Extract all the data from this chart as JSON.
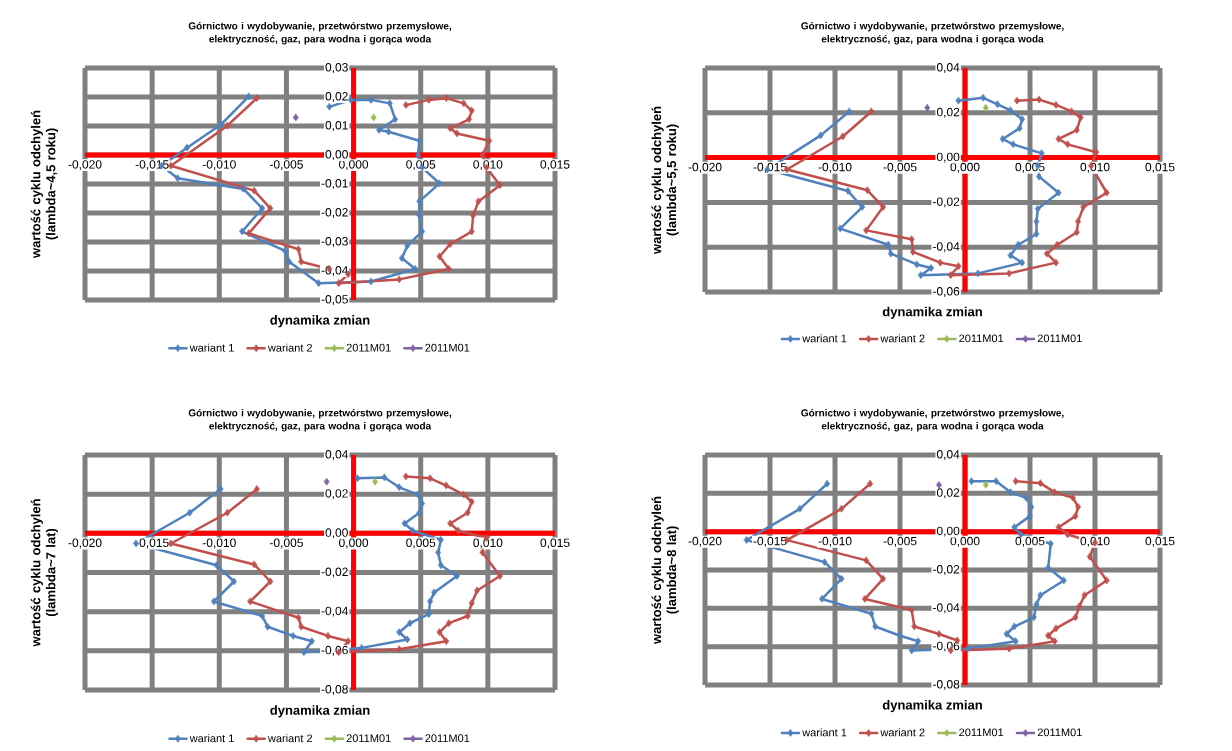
{
  "chart_data": [
    {
      "type": "line",
      "title": "Górnictwo i wydobywanie, przetwórstwo przemysłowe, elektryczność, gaz, para wodna i gorąca woda",
      "xlabel": "dynamika zmian",
      "ylabel": "wartość cyklu odchyleń (lambda~4,5 roku)",
      "grid": true,
      "legend": "bottom",
      "marker": "diamond",
      "xlim": [
        -0.02,
        0.015
      ],
      "ylim": [
        -0.05,
        0.03
      ],
      "xticks": [
        {
          "value": -0.02,
          "label": "-0,020"
        },
        {
          "value": -0.015,
          "label": "-0,015"
        },
        {
          "value": -0.01,
          "label": "-0,010"
        },
        {
          "value": -0.005,
          "label": "-0,005"
        },
        {
          "value": 0,
          "label": "0,000"
        },
        {
          "value": 0.005,
          "label": "0,005"
        },
        {
          "value": 0.01,
          "label": "0,010"
        },
        {
          "value": 0.015,
          "label": "0,015"
        }
      ],
      "yticks": [
        {
          "value": -0.05,
          "label": "-0,05"
        },
        {
          "value": -0.04,
          "label": "-0,04"
        },
        {
          "value": -0.03,
          "label": "-0,03"
        },
        {
          "value": -0.02,
          "label": "-0,02"
        },
        {
          "value": -0.01,
          "label": "-0,01"
        },
        {
          "value": 0,
          "label": "0,00"
        },
        {
          "value": 0.01,
          "label": "0,01"
        },
        {
          "value": 0.02,
          "label": "0,02"
        },
        {
          "value": 0.03,
          "label": "0,03"
        }
      ],
      "series": [
        {
          "name": "wariant 1",
          "color": "#4f81bd",
          "x": [
            -0.0078,
            -0.0099,
            -0.0124,
            -0.0143,
            -0.0131,
            -0.0082,
            -0.0068,
            -0.0083,
            -0.0051,
            -0.0048,
            -0.0026,
            0.0013,
            0.0046,
            0.0036,
            0.004,
            0.0051,
            0.0049,
            0.0049,
            0.0064,
            0.0051,
            0.0048,
            0.0049,
            0.0026,
            0.0019,
            0.0031,
            0.0027,
            0.0013,
            -0.0002,
            -0.0018
          ],
          "values": [
            0.0202,
            0.0104,
            0.0025,
            -0.0037,
            -0.008,
            -0.0117,
            -0.0184,
            -0.0264,
            -0.0331,
            -0.0368,
            -0.0442,
            -0.0436,
            -0.0393,
            -0.0356,
            -0.0313,
            -0.0264,
            -0.0209,
            -0.016,
            -0.0098,
            -0.0043,
            0.0,
            0.0049,
            0.008,
            0.0086,
            0.0123,
            0.0178,
            0.019,
            0.019,
            0.0166
          ]
        },
        {
          "name": "wariant 2",
          "color": "#c0504d",
          "x": [
            -0.0072,
            -0.0094,
            -0.0136,
            -0.0074,
            -0.0062,
            -0.0078,
            -0.0041,
            -0.0039,
            -0.0018,
            -0.0004,
            -0.0011,
            0.0034,
            0.0071,
            0.0064,
            0.0072,
            0.0088,
            0.0089,
            0.0093,
            0.0109,
            0.0099,
            0.0096,
            0.0101,
            0.0077,
            0.0072,
            0.0086,
            0.0088,
            0.0082,
            0.0069,
            0.0056,
            0.0039
          ],
          "values": [
            0.0196,
            0.0101,
            -0.0037,
            -0.0123,
            -0.0184,
            -0.027,
            -0.0325,
            -0.0368,
            -0.0393,
            -0.0411,
            -0.0442,
            -0.0429,
            -0.0393,
            -0.035,
            -0.0307,
            -0.0264,
            -0.0209,
            -0.016,
            -0.0104,
            -0.0043,
            0.0,
            0.0049,
            0.0074,
            0.0092,
            0.0123,
            0.0153,
            0.0178,
            0.0196,
            0.019,
            0.0172
          ]
        },
        {
          "name": "2011M01",
          "color": "#9bbb59",
          "x": [
            0.0015
          ],
          "values": [
            0.0129
          ]
        },
        {
          "name": "2011M01",
          "color": "#8064a2",
          "x": [
            -0.0043
          ],
          "values": [
            0.0129
          ]
        }
      ]
    },
    {
      "type": "line",
      "title": "Górnictwo i wydobywanie, przetwórstwo przemysłowe, elektryczność, gaz, para wodna i gorąca woda",
      "xlabel": "dynamika zmian",
      "ylabel": "wartość cyklu odchyleń (lambda~5,5 roku)",
      "grid": true,
      "legend": "bottom",
      "marker": "diamond",
      "xlim": [
        -0.02,
        0.015
      ],
      "ylim": [
        -0.06,
        0.04
      ],
      "xticks": [
        {
          "value": -0.02,
          "label": "-0,020"
        },
        {
          "value": -0.015,
          "label": "-0,015"
        },
        {
          "value": -0.01,
          "label": "-0,010"
        },
        {
          "value": -0.005,
          "label": "-0,005"
        },
        {
          "value": 0,
          "label": "0,000"
        },
        {
          "value": 0.005,
          "label": "0,005"
        },
        {
          "value": 0.01,
          "label": "0,010"
        },
        {
          "value": 0.015,
          "label": "0,015"
        }
      ],
      "yticks": [
        {
          "value": -0.06,
          "label": "-0,06"
        },
        {
          "value": -0.04,
          "label": "-0,04"
        },
        {
          "value": -0.02,
          "label": "-0,02"
        },
        {
          "value": 0,
          "label": "0,00"
        },
        {
          "value": 0.02,
          "label": "0,02"
        },
        {
          "value": 0.04,
          "label": "0,04"
        }
      ],
      "series": [
        {
          "name": "wariant 1",
          "color": "#4f81bd",
          "x": [
            -0.0089,
            -0.0111,
            -0.0152,
            -0.009,
            -0.0079,
            -0.0096,
            -0.0059,
            -0.0057,
            -0.0037,
            -0.0026,
            -0.0034,
            0.001,
            0.0044,
            0.0035,
            0.0041,
            0.0055,
            0.0055,
            0.0056,
            0.0072,
            0.0057,
            0.0056,
            0.0059,
            0.0037,
            0.0029,
            0.0042,
            0.0044,
            0.0035,
            0.0025,
            0.0014,
            -0.0005
          ],
          "values": [
            0.0206,
            0.0099,
            -0.0053,
            -0.0149,
            -0.0221,
            -0.0317,
            -0.0389,
            -0.0429,
            -0.0477,
            -0.0493,
            -0.0525,
            -0.0517,
            -0.0469,
            -0.0437,
            -0.0389,
            -0.0341,
            -0.0285,
            -0.0229,
            -0.0157,
            -0.0085,
            -0.0037,
            0.0019,
            0.0059,
            0.0083,
            0.0131,
            0.0171,
            0.0211,
            0.0238,
            0.0267,
            0.0254
          ]
        },
        {
          "name": "wariant 2",
          "color": "#c0504d",
          "x": [
            -0.0072,
            -0.0094,
            -0.0137,
            -0.0075,
            -0.0063,
            -0.0076,
            -0.0041,
            -0.004,
            -0.0019,
            -0.0005,
            -0.0011,
            0.0034,
            0.007,
            0.0063,
            0.0071,
            0.0086,
            0.0087,
            0.0091,
            0.0109,
            0.0097,
            0.0101,
            0.0079,
            0.0072,
            0.0086,
            0.0089,
            0.0082,
            0.007,
            0.0057,
            0.004
          ],
          "values": [
            0.0206,
            0.0094,
            -0.0053,
            -0.0146,
            -0.0221,
            -0.0325,
            -0.0365,
            -0.0421,
            -0.0469,
            -0.0485,
            -0.0525,
            -0.0517,
            -0.0469,
            -0.0429,
            -0.0389,
            -0.0333,
            -0.0285,
            -0.0221,
            -0.0157,
            -0.0037,
            0.0024,
            0.0059,
            0.0083,
            0.0123,
            0.0179,
            0.0206,
            0.0235,
            0.0259,
            0.0254
          ]
        },
        {
          "name": "2011M01",
          "color": "#9bbb59",
          "x": [
            0.0016
          ],
          "values": [
            0.0222
          ]
        },
        {
          "name": "2011M01",
          "color": "#8064a2",
          "x": [
            -0.0029
          ],
          "values": [
            0.0222
          ]
        }
      ]
    },
    {
      "type": "line",
      "title": "Górnictwo i wydobywanie, przetwórstwo przemysłowe, elektryczność, gaz, para wodna i gorąca woda",
      "xlabel": "dynamika zmian",
      "ylabel": "wartość cyklu odchyleń (lambda~7 lat)",
      "grid": true,
      "legend": "bottom",
      "marker": "diamond",
      "xlim": [
        -0.02,
        0.015
      ],
      "ylim": [
        -0.08,
        0.04
      ],
      "xticks": [
        {
          "value": -0.02,
          "label": "-0,020"
        },
        {
          "value": -0.015,
          "label": "-0,015"
        },
        {
          "value": -0.01,
          "label": "-0,010"
        },
        {
          "value": -0.005,
          "label": "-0,005"
        },
        {
          "value": 0,
          "label": "0,000"
        },
        {
          "value": 0.005,
          "label": "0,005"
        },
        {
          "value": 0.01,
          "label": "0,010"
        },
        {
          "value": 0.015,
          "label": "0,015"
        }
      ],
      "yticks": [
        {
          "value": -0.08,
          "label": "-0,08"
        },
        {
          "value": -0.06,
          "label": "-0,06"
        },
        {
          "value": -0.04,
          "label": "-0,04"
        },
        {
          "value": -0.02,
          "label": "-0,02"
        },
        {
          "value": 0,
          "label": "0,00"
        },
        {
          "value": 0.02,
          "label": "0,02"
        },
        {
          "value": 0.04,
          "label": "0,04"
        }
      ],
      "series": [
        {
          "name": "wariant 1",
          "color": "#4f81bd",
          "x": [
            -0.0099,
            -0.0122,
            -0.0162,
            -0.0102,
            -0.0089,
            -0.0104,
            -0.0068,
            -0.0064,
            -0.0045,
            -0.0031,
            -0.0037,
            0.0006,
            0.004,
            0.0034,
            0.0042,
            0.0056,
            0.0057,
            0.006,
            0.0077,
            0.0065,
            0.0063,
            0.0065,
            0.0044,
            0.0038,
            0.0049,
            0.0051,
            0.0048,
            0.0034,
            0.0023,
            0.0003
          ],
          "values": [
            0.0226,
            0.0105,
            -0.0052,
            -0.0163,
            -0.0246,
            -0.0348,
            -0.0422,
            -0.0477,
            -0.0524,
            -0.0551,
            -0.0607,
            -0.0585,
            -0.0542,
            -0.0505,
            -0.0459,
            -0.0413,
            -0.0348,
            -0.0302,
            -0.0218,
            -0.0163,
            -0.0098,
            -0.0033,
            0.0013,
            0.005,
            0.0105,
            0.0152,
            0.0198,
            0.0235,
            0.0285,
            0.0281
          ]
        },
        {
          "name": "wariant 2",
          "color": "#c0504d",
          "x": [
            -0.0072,
            -0.0094,
            -0.0136,
            -0.0074,
            -0.0062,
            -0.0077,
            -0.0041,
            -0.0039,
            -0.0019,
            -0.0004,
            -0.0011,
            0.0034,
            0.0069,
            0.0064,
            0.0071,
            0.0085,
            0.0088,
            0.0092,
            0.0109,
            0.0096,
            0.0099,
            0.0078,
            0.0072,
            0.0085,
            0.0088,
            0.0082,
            0.0069,
            0.0057,
            0.0039
          ],
          "values": [
            0.0226,
            0.0105,
            -0.0052,
            -0.0159,
            -0.0246,
            -0.0348,
            -0.0431,
            -0.0477,
            -0.0524,
            -0.0551,
            -0.0607,
            -0.0592,
            -0.0551,
            -0.0505,
            -0.0459,
            -0.0422,
            -0.0357,
            -0.0292,
            -0.0218,
            -0.0098,
            -0.0024,
            0.0013,
            0.005,
            0.0105,
            0.0161,
            0.0198,
            0.0244,
            0.0281,
            0.029
          ]
        },
        {
          "name": "2011M01",
          "color": "#9bbb59",
          "x": [
            0.0016
          ],
          "values": [
            0.0263
          ]
        },
        {
          "name": "2011M01",
          "color": "#8064a2",
          "x": [
            -0.002
          ],
          "values": [
            0.0263
          ]
        }
      ]
    },
    {
      "type": "line",
      "title": "Górnictwo i wydobywanie, przetwórstwo przemysłowe, elektryczność, gaz, para wodna i gorąca woda",
      "xlabel": "dynamika zmian",
      "ylabel": "wartość cyklu odchyleń (lambda~8 lat)",
      "grid": true,
      "legend": "bottom",
      "marker": "diamond",
      "xlim": [
        -0.02,
        0.015
      ],
      "ylim": [
        -0.08,
        0.04
      ],
      "xticks": [
        {
          "value": -0.02,
          "label": "-0,020"
        },
        {
          "value": -0.015,
          "label": "-0,015"
        },
        {
          "value": -0.01,
          "label": "-0,010"
        },
        {
          "value": -0.005,
          "label": "-0,005"
        },
        {
          "value": 0,
          "label": "0,000"
        },
        {
          "value": 0.005,
          "label": "0,005"
        },
        {
          "value": 0.01,
          "label": "0,010"
        },
        {
          "value": 0.015,
          "label": "0,015"
        }
      ],
      "yticks": [
        {
          "value": -0.08,
          "label": "-0,08"
        },
        {
          "value": -0.06,
          "label": "-0,06"
        },
        {
          "value": -0.04,
          "label": "-0,04"
        },
        {
          "value": -0.02,
          "label": "-0,02"
        },
        {
          "value": 0,
          "label": "0,00"
        },
        {
          "value": 0.02,
          "label": "0,02"
        },
        {
          "value": 0.04,
          "label": "0,04"
        }
      ],
      "series": [
        {
          "name": "wariant 1",
          "color": "#4f81bd",
          "x": [
            -0.0106,
            -0.0127,
            -0.0168,
            -0.0108,
            -0.0095,
            -0.011,
            -0.0072,
            -0.0069,
            -0.005,
            -0.0036,
            -0.0041,
            0.0002,
            0.0039,
            0.0032,
            0.0038,
            0.0053,
            0.0055,
            0.0058,
            0.0076,
            0.0064,
            0.0066,
            0.0043,
            0.0038,
            0.005,
            0.0051,
            0.0047,
            0.0035,
            0.0024,
            0.0005
          ],
          "values": [
            0.025,
            0.0119,
            -0.0044,
            -0.0159,
            -0.0246,
            -0.0351,
            -0.0428,
            -0.0495,
            -0.0543,
            -0.0572,
            -0.062,
            -0.0611,
            -0.0572,
            -0.0534,
            -0.0495,
            -0.0447,
            -0.038,
            -0.0332,
            -0.0255,
            -0.0188,
            -0.0063,
            -0.0015,
            0.0023,
            0.0081,
            0.0129,
            0.0177,
            0.0205,
            0.0263,
            0.0263
          ]
        },
        {
          "name": "wariant 2",
          "color": "#c0504d",
          "x": [
            -0.0073,
            -0.0095,
            -0.0137,
            -0.0076,
            -0.0063,
            -0.0077,
            -0.0041,
            -0.0039,
            -0.002,
            -0.0006,
            -0.0011,
            0.0034,
            0.0069,
            0.0064,
            0.007,
            0.0085,
            0.0088,
            0.0092,
            0.0109,
            0.0096,
            0.01,
            0.0079,
            0.0072,
            0.0085,
            0.0087,
            0.0083,
            0.0069,
            0.0058,
            0.0039
          ],
          "values": [
            0.025,
            0.0119,
            -0.0044,
            -0.015,
            -0.0246,
            -0.0351,
            -0.0409,
            -0.0495,
            -0.0534,
            -0.0568,
            -0.062,
            -0.0611,
            -0.0572,
            -0.0543,
            -0.0505,
            -0.0447,
            -0.039,
            -0.0332,
            -0.0255,
            -0.0131,
            -0.0058,
            -0.0015,
            0.0023,
            0.0081,
            0.0129,
            0.0177,
            0.0205,
            0.0253,
            0.0263
          ]
        },
        {
          "name": "2011M01",
          "color": "#9bbb59",
          "x": [
            0.0016
          ],
          "values": [
            0.0244
          ]
        },
        {
          "name": "2011M01",
          "color": "#8064a2",
          "x": [
            -0.002
          ],
          "values": [
            0.0244
          ]
        }
      ]
    }
  ]
}
